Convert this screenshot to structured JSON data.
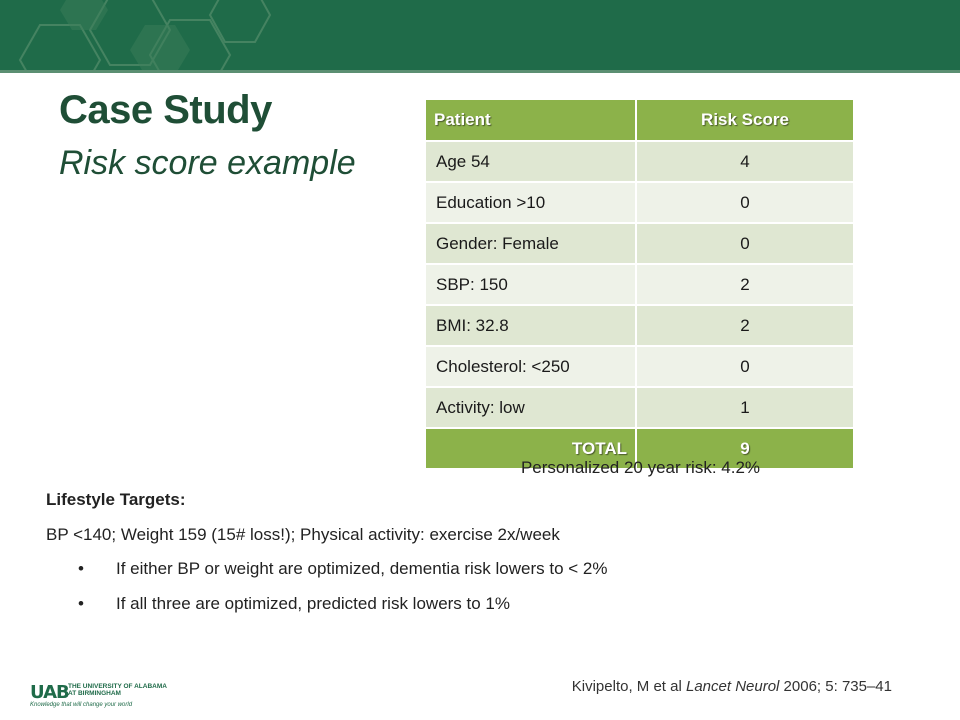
{
  "header": {
    "title": "Case Study",
    "subtitle": "Risk score example"
  },
  "table": {
    "headers": [
      "Patient",
      "Risk Score"
    ],
    "rows": [
      [
        "Age 54",
        "4"
      ],
      [
        "Education >10",
        "0"
      ],
      [
        "Gender: Female",
        "0"
      ],
      [
        "SBP: 150",
        "2"
      ],
      [
        "BMI: 32.8",
        "2"
      ],
      [
        "Cholesterol: <250",
        "0"
      ],
      [
        "Activity: low",
        "1"
      ]
    ],
    "total_label": "TOTAL",
    "total_value": "9"
  },
  "personalized": "Personalized 20 year risk: 4.2%",
  "lifestyle": {
    "heading": "Lifestyle Targets:",
    "line": "BP <140; Weight 159 (15# loss!); Physical activity: exercise 2x/week",
    "bullets": [
      "If either BP or weight are optimized, dementia risk lowers to  < 2%",
      "If all three are optimized, predicted risk lowers to  1%"
    ]
  },
  "citation": {
    "pre": "Kivipelto, M et al ",
    "journal": "Lancet Neurol",
    "post": " 2006; 5: 735–41"
  },
  "logo": {
    "mark": "UAB",
    "text": "THE UNIVERSITY OF ALABAMA AT BIRMINGHAM",
    "tagline": "Knowledge that will change your world"
  },
  "colors": {
    "banner": "#1f6b49",
    "title": "#1f4e36",
    "table_header": "#8cb24a",
    "row_odd": "#dfe7d2",
    "row_even": "#eef2e8"
  }
}
